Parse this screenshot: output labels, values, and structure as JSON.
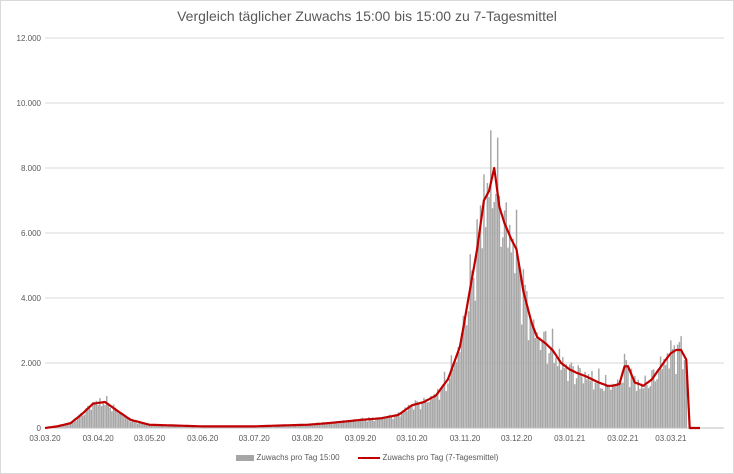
{
  "chart_data": {
    "type": "bar",
    "title": "Vergleich täglicher Zuwachs 15:00 bis 15:00 zu 7-Tagesmittel",
    "xlabel": "",
    "ylabel": "",
    "ylim": [
      0,
      12000
    ],
    "y_ticks": [
      0,
      2000,
      4000,
      6000,
      8000,
      10000,
      12000
    ],
    "y_tick_labels": [
      "0",
      "2.000",
      "4.000",
      "6.000",
      "8.000",
      "10.000",
      "12.000"
    ],
    "x_tick_labels": [
      "03.03.20",
      "03.04.20",
      "03.05.20",
      "03.06.20",
      "03.07.20",
      "03.08.20",
      "03.09.20",
      "03.10.20",
      "03.11.20",
      "03.12.20",
      "03.01.21",
      "03.02.21",
      "03.03.21"
    ],
    "x_tick_dates": [
      "2020-03-03",
      "2020-04-03",
      "2020-05-03",
      "2020-06-03",
      "2020-07-03",
      "2020-08-03",
      "2020-09-03",
      "2020-10-03",
      "2020-11-03",
      "2020-12-03",
      "2021-01-03",
      "2021-02-03",
      "2021-03-03"
    ],
    "x_range": [
      "2020-03-03",
      "2021-04-03"
    ],
    "grid": "horizontal",
    "legend_position": "bottom",
    "series_key_dates": [
      "2020-03-03",
      "2020-03-10",
      "2020-03-18",
      "2020-03-25",
      "2020-03-31",
      "2020-04-07",
      "2020-04-15",
      "2020-04-22",
      "2020-05-03",
      "2020-06-03",
      "2020-07-03",
      "2020-07-20",
      "2020-08-03",
      "2020-08-15",
      "2020-08-25",
      "2020-09-03",
      "2020-09-15",
      "2020-09-25",
      "2020-10-03",
      "2020-10-10",
      "2020-10-17",
      "2020-10-24",
      "2020-10-31",
      "2020-11-05",
      "2020-11-10",
      "2020-11-14",
      "2020-11-17",
      "2020-11-20",
      "2020-11-23",
      "2020-11-26",
      "2020-11-30",
      "2020-12-03",
      "2020-12-07",
      "2020-12-12",
      "2020-12-15",
      "2020-12-20",
      "2020-12-24",
      "2020-12-29",
      "2021-01-03",
      "2021-01-07",
      "2021-01-12",
      "2021-01-16",
      "2021-01-20",
      "2021-01-25",
      "2021-01-28",
      "2021-02-01",
      "2021-02-04",
      "2021-02-06",
      "2021-02-10",
      "2021-02-15",
      "2021-02-20",
      "2021-02-24",
      "2021-02-28",
      "2021-03-03",
      "2021-03-06",
      "2021-03-09",
      "2021-03-12",
      "2021-03-14",
      "2021-04-03"
    ],
    "series": [
      {
        "name": "Zuwachs pro Tag 15:00",
        "color": "#a6a6a6",
        "values": [
          0,
          50,
          150,
          450,
          750,
          800,
          500,
          250,
          100,
          50,
          50,
          80,
          100,
          150,
          200,
          250,
          300,
          400,
          700,
          800,
          1000,
          1500,
          2500,
          4000,
          5500,
          7000,
          7300,
          8000,
          6800,
          6300,
          5800,
          5500,
          4200,
          3200,
          2800,
          2600,
          2400,
          2000,
          1800,
          1700,
          1600,
          1500,
          1400,
          1300,
          1300,
          1350,
          1900,
          1900,
          1400,
          1300,
          1500,
          1800,
          2100,
          2300,
          2400,
          2400,
          2100,
          0,
          0
        ]
      },
      {
        "name": "Zuwachs pro Tag (7-Tagesmittel)",
        "color": "#c00000",
        "values": [
          0,
          50,
          150,
          450,
          750,
          800,
          500,
          250,
          100,
          50,
          50,
          80,
          100,
          150,
          200,
          250,
          300,
          400,
          700,
          800,
          1000,
          1500,
          2500,
          4000,
          5500,
          7000,
          7300,
          8000,
          6800,
          6300,
          5800,
          5500,
          4200,
          3200,
          2800,
          2600,
          2400,
          2000,
          1800,
          1700,
          1600,
          1500,
          1400,
          1300,
          1300,
          1350,
          1900,
          1900,
          1400,
          1300,
          1500,
          1800,
          2100,
          2300,
          2400,
          2400,
          2100,
          0,
          0
        ]
      }
    ]
  }
}
